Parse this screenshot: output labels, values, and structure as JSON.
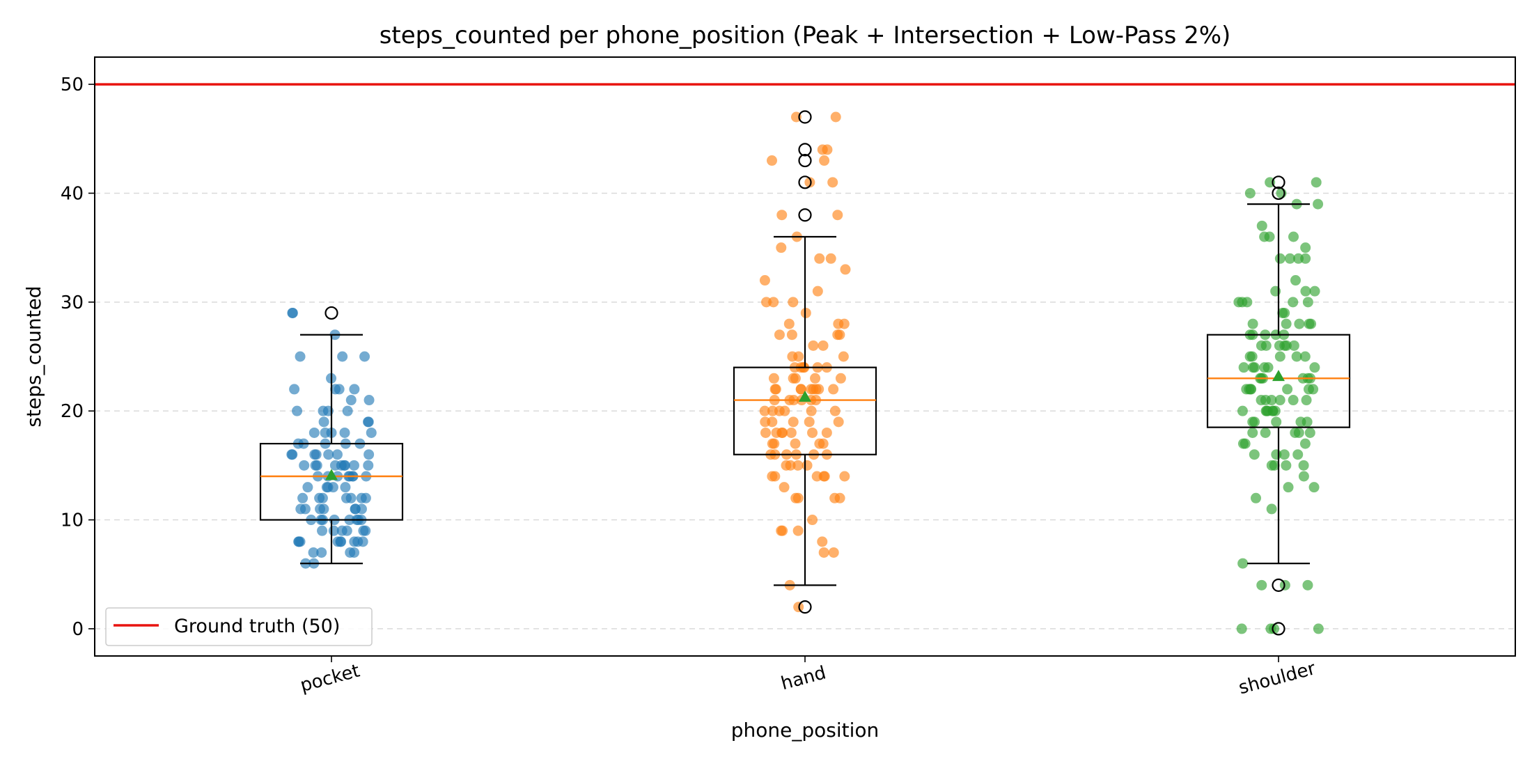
{
  "chart_data": {
    "type": "box",
    "title": "steps_counted per phone_position (Peak + Intersection + Low-Pass 2%)",
    "xlabel": "phone_position",
    "ylabel": "steps_counted",
    "categories": [
      "pocket",
      "hand",
      "shoulder"
    ],
    "ylim": [
      -2.5,
      52.5
    ],
    "yticks": [
      0,
      10,
      20,
      30,
      40,
      50
    ],
    "grid": "horizontal dashed",
    "legend": {
      "position": "lower-left",
      "entries": [
        "Ground truth (50)"
      ]
    },
    "reference_line": {
      "value": 50,
      "label": "Ground truth (50)",
      "color": "#e8130f"
    },
    "boxes": [
      {
        "name": "pocket",
        "q1": 10,
        "median": 14,
        "q3": 17,
        "whisker_low": 6,
        "whisker_high": 27,
        "mean": 14.1,
        "outliers": [
          29
        ]
      },
      {
        "name": "hand",
        "q1": 16,
        "median": 21,
        "q3": 24,
        "whisker_low": 4,
        "whisker_high": 36,
        "mean": 21.3,
        "outliers": [
          47,
          44,
          43,
          41,
          38,
          2
        ]
      },
      {
        "name": "shoulder",
        "q1": 18.5,
        "median": 23,
        "q3": 27,
        "whisker_low": 6,
        "whisker_high": 39,
        "mean": 23.2,
        "outliers": [
          41,
          40,
          4,
          0
        ]
      }
    ],
    "series": [
      {
        "name": "pocket",
        "color": "#1f77b4",
        "values": [
          29,
          29,
          27,
          25,
          25,
          25,
          23,
          22,
          22,
          22,
          22,
          21,
          21,
          20,
          20,
          20,
          20,
          19,
          19,
          19,
          18,
          18,
          18,
          18,
          18,
          17,
          17,
          17,
          17,
          17,
          16,
          16,
          16,
          16,
          16,
          16,
          16,
          15,
          15,
          15,
          15,
          15,
          15,
          15,
          15,
          15,
          14,
          14,
          14,
          14,
          14,
          14,
          14,
          14,
          13,
          13,
          13,
          13,
          13,
          12,
          12,
          12,
          12,
          12,
          12,
          12,
          11,
          11,
          11,
          11,
          11,
          11,
          11,
          10,
          10,
          10,
          10,
          10,
          10,
          10,
          10,
          9,
          9,
          9,
          9,
          9,
          9,
          8,
          8,
          8,
          8,
          8,
          8,
          8,
          8,
          8,
          7,
          7,
          7,
          7,
          6,
          6
        ]
      },
      {
        "name": "hand",
        "color": "#ff7f0e",
        "values": [
          47,
          47,
          44,
          44,
          43,
          43,
          41,
          41,
          38,
          38,
          36,
          35,
          34,
          34,
          33,
          32,
          31,
          30,
          30,
          30,
          29,
          28,
          28,
          28,
          27,
          27,
          27,
          27,
          26,
          26,
          25,
          25,
          25,
          24,
          24,
          24,
          24,
          24,
          24,
          23,
          23,
          23,
          23,
          23,
          22,
          22,
          22,
          22,
          22,
          22,
          22,
          22,
          22,
          21,
          21,
          21,
          21,
          21,
          21,
          20,
          20,
          20,
          20,
          20,
          20,
          19,
          19,
          19,
          19,
          19,
          18,
          18,
          18,
          18,
          18,
          18,
          18,
          17,
          17,
          17,
          17,
          17,
          16,
          16,
          16,
          16,
          16,
          16,
          15,
          15,
          15,
          15,
          14,
          14,
          14,
          14,
          14,
          14,
          13,
          12,
          12,
          12,
          12,
          10,
          9,
          9,
          9,
          8,
          7,
          7,
          4,
          2
        ]
      },
      {
        "name": "shoulder",
        "color": "#2ca02c",
        "values": [
          41,
          41,
          40,
          40,
          39,
          39,
          37,
          36,
          36,
          36,
          35,
          34,
          34,
          34,
          34,
          32,
          31,
          31,
          31,
          30,
          30,
          30,
          30,
          30,
          29,
          29,
          28,
          28,
          28,
          28,
          28,
          27,
          27,
          27,
          27,
          27,
          26,
          26,
          26,
          26,
          26,
          26,
          25,
          25,
          25,
          25,
          25,
          24,
          24,
          24,
          24,
          24,
          24,
          23,
          23,
          23,
          23,
          23,
          23,
          22,
          22,
          22,
          22,
          22,
          22,
          22,
          21,
          21,
          21,
          21,
          21,
          21,
          20,
          20,
          20,
          20,
          20,
          20,
          20,
          19,
          19,
          19,
          19,
          19,
          18,
          18,
          18,
          18,
          18,
          17,
          17,
          17,
          16,
          16,
          16,
          16,
          15,
          15,
          15,
          15,
          14,
          13,
          13,
          12,
          11,
          6,
          4,
          4,
          4,
          0,
          0,
          0,
          0
        ]
      }
    ]
  }
}
